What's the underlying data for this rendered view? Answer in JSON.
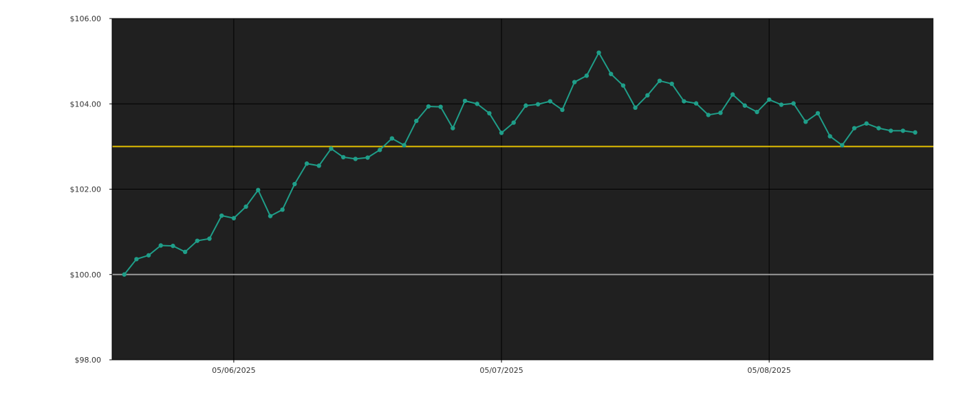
{
  "colors": {
    "background": "#ffffff",
    "plot_background": "#202020",
    "grid": "#000000",
    "series": "#1f9e89",
    "reference_high": "#e5c100",
    "reference_base": "#9a9a9a",
    "tick_text": "#333333"
  },
  "chart_data": {
    "type": "line",
    "title": "",
    "xlabel": "",
    "ylabel": "",
    "ylim": [
      98,
      106
    ],
    "y_ticks": [
      98,
      100,
      102,
      104,
      106
    ],
    "y_tick_labels": [
      "$98.00",
      "$100.00",
      "$102.00",
      "$104.00",
      "$106.00"
    ],
    "x_ticks": [
      10,
      32,
      54
    ],
    "x_tick_labels": [
      "05/06/2025",
      "05/07/2025",
      "05/08/2025"
    ],
    "x_range": [
      0.0,
      67.5
    ],
    "grid": true,
    "legend": "none",
    "reference_lines": [
      {
        "kind": "highlight",
        "value": 103.0
      },
      {
        "kind": "baseline",
        "value": 100.0
      }
    ],
    "series": [
      {
        "values": [
          100.0,
          100.36,
          100.45,
          100.68,
          100.67,
          100.53,
          100.79,
          100.84,
          101.38,
          101.32,
          101.59,
          101.98,
          101.37,
          101.52,
          102.12,
          102.6,
          102.55,
          102.95,
          102.75,
          102.71,
          102.74,
          102.92,
          103.19,
          103.03,
          103.6,
          103.94,
          103.93,
          103.43,
          104.07,
          104.0,
          103.78,
          103.32,
          103.56,
          103.96,
          103.99,
          104.06,
          103.86,
          104.51,
          104.66,
          105.2,
          104.7,
          104.43,
          103.91,
          104.2,
          104.54,
          104.47,
          104.06,
          104.01,
          103.74,
          103.79,
          104.22,
          103.96,
          103.81,
          104.1,
          103.98,
          104.01,
          103.58,
          103.78,
          103.24,
          103.03,
          103.43,
          103.54,
          103.43,
          103.37,
          103.37,
          103.33
        ]
      }
    ]
  }
}
